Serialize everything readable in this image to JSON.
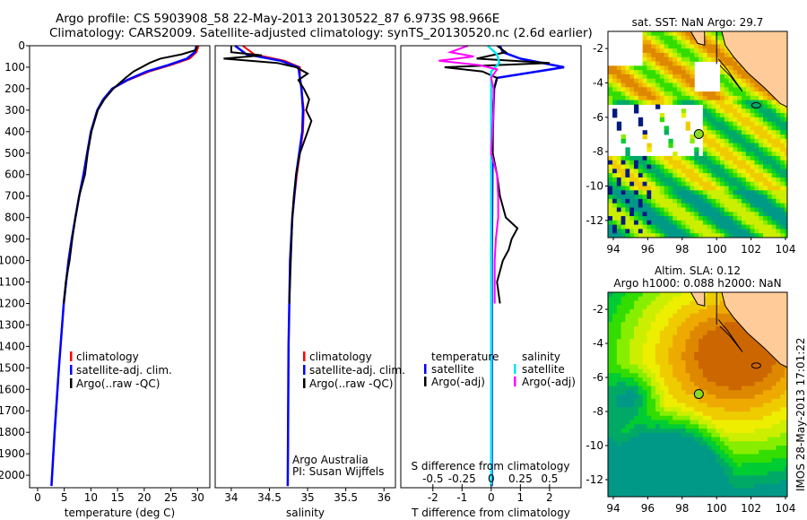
{
  "title_line1": "Argo profile: CS 5903908_58 22-May-2013 20130522_87 6.973S 98.966E",
  "title_line2": "Climatology: CARS2009. Satellite-adjusted climatology: synTS_20130520.nc (2.6d earlier)",
  "footer_stamp": "IMOS 28-May-2013 17:01:22",
  "colors": {
    "climatology": "#ff0000",
    "satellite": "#0000ff",
    "argo": "#000000",
    "sal_satellite": "#00e5ee",
    "sal_argo": "#ff00ff",
    "land": "#ffcc99",
    "float_marker": "#88dd22"
  },
  "chart_data": [
    {
      "type": "line",
      "id": "temperature",
      "xlabel": "temperature (deg C)",
      "ylabel": "depth",
      "xlim": [
        -1.5,
        32.3
      ],
      "ylim": [
        2058,
        0
      ],
      "xticks": [
        0,
        5,
        10,
        15,
        20,
        25,
        30
      ],
      "yticks": [
        0,
        100,
        200,
        300,
        400,
        500,
        600,
        700,
        800,
        900,
        1000,
        1100,
        1200,
        1300,
        1400,
        1500,
        1600,
        1700,
        1800,
        1900,
        2000
      ],
      "legend": [
        "climatology",
        "satellite-adj. clim.",
        "Argo(..raw -QC)"
      ],
      "legend_pos": "lower-middle",
      "series": [
        {
          "name": "climatology",
          "color": "#ff0000",
          "depth": [
            0,
            30,
            60,
            90,
            120,
            160,
            200,
            250,
            300,
            400,
            500,
            600,
            700,
            800,
            900,
            1000,
            1200,
            1500,
            1800,
            2050
          ],
          "values": [
            30.2,
            29.8,
            28.5,
            25,
            21,
            17,
            14,
            12.3,
            11.2,
            10,
            9.3,
            8.6,
            7.8,
            7.1,
            6.4,
            5.8,
            4.9,
            4.0,
            3.2,
            2.6
          ]
        },
        {
          "name": "satellite-adj. clim.",
          "color": "#0000ff",
          "depth": [
            0,
            30,
            60,
            90,
            120,
            160,
            200,
            250,
            300,
            400,
            500,
            600,
            700,
            800,
            900,
            1000,
            1200,
            1500,
            1800,
            2050
          ],
          "values": [
            29.8,
            29.5,
            28,
            24.5,
            20.5,
            16.8,
            14,
            12.3,
            11.2,
            10,
            9.3,
            8.6,
            7.8,
            7.1,
            6.4,
            5.8,
            4.9,
            4.0,
            3.2,
            2.6
          ]
        },
        {
          "name": "Argo(..raw -QC)",
          "color": "#000000",
          "depth": [
            0,
            20,
            40,
            60,
            80,
            100,
            120,
            150,
            200,
            250,
            300,
            400,
            500,
            600,
            700,
            800,
            900,
            1000,
            1100,
            1200
          ],
          "values": [
            29.9,
            29.7,
            27,
            23,
            21,
            19.5,
            18,
            16.5,
            14.2,
            12.5,
            11.3,
            10.1,
            9.4,
            8.9,
            7.8,
            7.1,
            6.5,
            6.0,
            5.3,
            4.9
          ]
        }
      ]
    },
    {
      "type": "line",
      "id": "salinity",
      "xlabel": "salinity",
      "xlim": [
        33.79,
        36.15
      ],
      "ylim": [
        2058,
        0
      ],
      "xticks": [
        34,
        34.5,
        35,
        35.5,
        36
      ],
      "xticklabels": [
        "34",
        "34.5",
        "35",
        "35.5",
        "36"
      ],
      "legend": [
        "climatology",
        "satellite-adj. clim.",
        "Argo(..raw -QC)"
      ],
      "annotation": [
        "Argo Australia",
        "PI: Susan Wijffels"
      ],
      "series": [
        {
          "name": "climatology",
          "color": "#ff0000",
          "depth": [
            0,
            40,
            70,
            100,
            150,
            200,
            300,
            400,
            600,
            800,
            1000,
            1400,
            2050
          ],
          "values": [
            34.15,
            34.3,
            34.7,
            34.9,
            34.9,
            34.92,
            34.95,
            34.94,
            34.86,
            34.8,
            34.77,
            34.75,
            34.74
          ]
        },
        {
          "name": "satellite-adj. clim.",
          "color": "#0000ff",
          "depth": [
            0,
            40,
            70,
            100,
            150,
            200,
            300,
            400,
            600,
            800,
            1000,
            1400,
            2050
          ],
          "values": [
            34.05,
            34.2,
            34.65,
            34.88,
            34.9,
            34.92,
            34.94,
            34.93,
            34.85,
            34.8,
            34.77,
            34.75,
            34.74
          ]
        },
        {
          "name": "Argo(..raw -QC)",
          "color": "#000000",
          "depth": [
            0,
            30,
            45,
            60,
            80,
            100,
            130,
            160,
            200,
            250,
            300,
            350,
            400,
            500,
            600,
            700,
            800,
            900,
            1000,
            1100,
            1200
          ],
          "values": [
            34.0,
            34.0,
            34.4,
            33.9,
            34.6,
            34.85,
            35.0,
            34.88,
            34.95,
            35.02,
            34.98,
            35.05,
            35.0,
            34.9,
            34.85,
            34.82,
            34.8,
            34.79,
            34.78,
            34.77,
            34.76
          ]
        }
      ]
    },
    {
      "type": "line",
      "id": "difference",
      "xlabel": "T difference from climatology",
      "x2label": "S difference from climatology",
      "xlim": [
        -3.1,
        3.08
      ],
      "x2lim": [
        -0.775,
        0.77
      ],
      "ylim": [
        2058,
        0
      ],
      "xticks": [
        -2,
        -1,
        0,
        1,
        2
      ],
      "x2ticks": [
        -0.5,
        -0.25,
        0,
        0.25,
        0.5
      ],
      "legend_temperature": {
        "heading": "temperature",
        "items": [
          "satellite",
          "Argo(-adj)"
        ]
      },
      "legend_salinity": {
        "heading": "salinity",
        "items": [
          "satellite",
          "Argo(-adj)"
        ]
      },
      "series": [
        {
          "name": "T satellite",
          "color": "#0000ff",
          "depth": [
            0,
            30,
            60,
            100,
            150,
            200,
            400,
            1000,
            2050
          ],
          "values": [
            0.3,
            0.4,
            1.0,
            2.5,
            0.2,
            0.1,
            0.05,
            0.02,
            0.02
          ]
        },
        {
          "name": "T Argo(-adj)",
          "color": "#000000",
          "depth": [
            0,
            30,
            60,
            80,
            100,
            120,
            150,
            200,
            300,
            400,
            500,
            600,
            700,
            800,
            850,
            900,
            950,
            1000,
            1100,
            1200
          ],
          "values": [
            0.2,
            0.5,
            -0.5,
            2.0,
            -1.6,
            -0.3,
            0.2,
            0.1,
            0.05,
            0.05,
            0.05,
            0.2,
            0.3,
            0.5,
            0.9,
            0.7,
            0.6,
            0.4,
            0.2,
            0.3
          ]
        },
        {
          "name": "S satellite",
          "color": "#00e5ee",
          "depth": [
            0,
            40,
            80,
            120,
            200,
            400,
            1000,
            2050
          ],
          "values": [
            -0.03,
            0.05,
            0.07,
            0.0,
            0.0,
            0.0,
            0.0,
            0.0
          ]
        },
        {
          "name": "S Argo(-adj)",
          "color": "#ff00ff",
          "depth": [
            0,
            30,
            50,
            70,
            90,
            110,
            150,
            200,
            300,
            500,
            600,
            700,
            800,
            900,
            1000,
            1100,
            1200
          ],
          "values": [
            -0.2,
            -0.35,
            -0.15,
            -0.45,
            -0.1,
            0.05,
            0.0,
            0.02,
            0.02,
            0.0,
            0.05,
            0.06,
            0.06,
            0.04,
            0.03,
            0.03,
            0.03
          ]
        }
      ]
    },
    {
      "type": "heatmap",
      "id": "sst_map",
      "title": "sat. SST: NaN Argo: 29.7",
      "lonlim": [
        94,
        104
      ],
      "latlim": [
        -13,
        -1
      ],
      "xticks": [
        94,
        96,
        98,
        100,
        102,
        104
      ],
      "yticks": [
        -2,
        -4,
        -6,
        -8,
        -10,
        -12
      ],
      "float": {
        "lon": 98.966,
        "lat": -6.973
      }
    },
    {
      "type": "heatmap",
      "id": "sla_map",
      "title": [
        "Altim. SLA: 0.12",
        "Argo h1000: 0.088 h2000: NaN"
      ],
      "lonlim": [
        94,
        104
      ],
      "latlim": [
        -13,
        -1
      ],
      "xticks": [
        94,
        96,
        98,
        100,
        102,
        104
      ],
      "yticks": [
        -2,
        -4,
        -6,
        -8,
        -10,
        -12
      ],
      "float": {
        "lon": 98.966,
        "lat": -6.973
      }
    }
  ]
}
